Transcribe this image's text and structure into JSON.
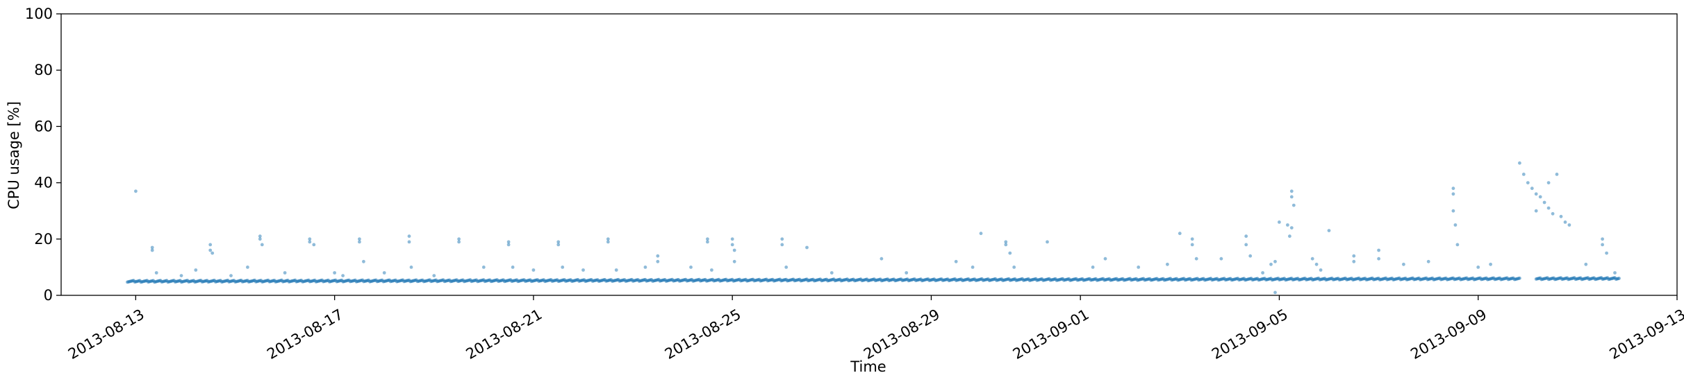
{
  "chart_data": {
    "type": "scatter",
    "title": "",
    "xlabel": "Time",
    "ylabel": "CPU usage [%]",
    "xlim": [
      "2013-08-11T12:00",
      "2013-09-13T00:00"
    ],
    "ylim": [
      0,
      100
    ],
    "x_ticks": [
      "2013-08-13",
      "2013-08-17",
      "2013-08-21",
      "2013-08-25",
      "2013-08-29",
      "2013-09-01",
      "2013-09-05",
      "2013-09-09",
      "2013-09-13"
    ],
    "y_ticks": [
      "0",
      "20",
      "40",
      "60",
      "80",
      "100"
    ],
    "grid": false,
    "legend": "none",
    "point_color": "#1f77b4",
    "series": [
      {
        "x_start": "2013-08-12T20:00",
        "x_end": "2013-09-11T20:00",
        "baseline_level_start": 5.0,
        "baseline_level_end": 6.0,
        "gap": [
          "2013-09-09T20:00",
          "2013-09-10T04:00"
        ],
        "points": [
          [
            "2013-08-13T00:00",
            37
          ],
          [
            "2013-08-13T08:00",
            17
          ],
          [
            "2013-08-13T08:00",
            16
          ],
          [
            "2013-08-13T10:00",
            8
          ],
          [
            "2013-08-13T22:00",
            7
          ],
          [
            "2013-08-14T05:00",
            9
          ],
          [
            "2013-08-14T12:00",
            18
          ],
          [
            "2013-08-14T12:00",
            16
          ],
          [
            "2013-08-14T13:00",
            15
          ],
          [
            "2013-08-14T22:00",
            7
          ],
          [
            "2013-08-15T06:00",
            10
          ],
          [
            "2013-08-15T12:00",
            21
          ],
          [
            "2013-08-15T12:00",
            20
          ],
          [
            "2013-08-15T13:00",
            18
          ],
          [
            "2013-08-16T00:00",
            8
          ],
          [
            "2013-08-16T12:00",
            20
          ],
          [
            "2013-08-16T12:00",
            19
          ],
          [
            "2013-08-16T14:00",
            18
          ],
          [
            "2013-08-17T00:00",
            8
          ],
          [
            "2013-08-17T04:00",
            7
          ],
          [
            "2013-08-17T12:00",
            20
          ],
          [
            "2013-08-17T12:00",
            19
          ],
          [
            "2013-08-17T14:00",
            12
          ],
          [
            "2013-08-18T00:00",
            8
          ],
          [
            "2013-08-18T12:00",
            21
          ],
          [
            "2013-08-18T12:00",
            19
          ],
          [
            "2013-08-18T13:00",
            10
          ],
          [
            "2013-08-19T00:00",
            7
          ],
          [
            "2013-08-19T12:00",
            20
          ],
          [
            "2013-08-19T12:00",
            19
          ],
          [
            "2013-08-20T00:00",
            10
          ],
          [
            "2013-08-20T12:00",
            19
          ],
          [
            "2013-08-20T12:00",
            18
          ],
          [
            "2013-08-20T14:00",
            10
          ],
          [
            "2013-08-21T00:00",
            9
          ],
          [
            "2013-08-21T12:00",
            19
          ],
          [
            "2013-08-21T12:00",
            18
          ],
          [
            "2013-08-21T14:00",
            10
          ],
          [
            "2013-08-22T00:00",
            9
          ],
          [
            "2013-08-22T12:00",
            20
          ],
          [
            "2013-08-22T12:00",
            19
          ],
          [
            "2013-08-22T16:00",
            9
          ],
          [
            "2013-08-23T06:00",
            10
          ],
          [
            "2013-08-23T12:00",
            14
          ],
          [
            "2013-08-23T12:00",
            12
          ],
          [
            "2013-08-24T04:00",
            10
          ],
          [
            "2013-08-24T12:00",
            20
          ],
          [
            "2013-08-24T12:00",
            19
          ],
          [
            "2013-08-24T14:00",
            9
          ],
          [
            "2013-08-25T00:00",
            20
          ],
          [
            "2013-08-25T00:00",
            18
          ],
          [
            "2013-08-25T01:00",
            16
          ],
          [
            "2013-08-25T01:00",
            12
          ],
          [
            "2013-08-26T00:00",
            20
          ],
          [
            "2013-08-26T00:00",
            18
          ],
          [
            "2013-08-26T02:00",
            10
          ],
          [
            "2013-08-26T12:00",
            17
          ],
          [
            "2013-08-27T00:00",
            8
          ],
          [
            "2013-08-28T00:00",
            13
          ],
          [
            "2013-08-28T12:00",
            8
          ],
          [
            "2013-08-29T12:00",
            12
          ],
          [
            "2013-08-29T20:00",
            10
          ],
          [
            "2013-08-30T00:00",
            22
          ],
          [
            "2013-08-30T12:00",
            19
          ],
          [
            "2013-08-30T12:00",
            18
          ],
          [
            "2013-08-30T14:00",
            15
          ],
          [
            "2013-08-30T16:00",
            10
          ],
          [
            "2013-08-31T08:00",
            19
          ],
          [
            "2013-09-01T06:00",
            10
          ],
          [
            "2013-09-01T12:00",
            13
          ],
          [
            "2013-09-02T04:00",
            10
          ],
          [
            "2013-09-02T18:00",
            11
          ],
          [
            "2013-09-03T00:00",
            22
          ],
          [
            "2013-09-03T06:00",
            20
          ],
          [
            "2013-09-03T06:00",
            18
          ],
          [
            "2013-09-03T08:00",
            13
          ],
          [
            "2013-09-03T20:00",
            13
          ],
          [
            "2013-09-04T08:00",
            21
          ],
          [
            "2013-09-04T08:00",
            18
          ],
          [
            "2013-09-04T10:00",
            14
          ],
          [
            "2013-09-04T16:00",
            8
          ],
          [
            "2013-09-04T20:00",
            11
          ],
          [
            "2013-09-04T22:00",
            12
          ],
          [
            "2013-09-04T22:00",
            1
          ],
          [
            "2013-09-05T00:00",
            26
          ],
          [
            "2013-09-05T04:00",
            25
          ],
          [
            "2013-09-05T06:00",
            37
          ],
          [
            "2013-09-05T06:00",
            35
          ],
          [
            "2013-09-05T07:00",
            32
          ],
          [
            "2013-09-05T06:00",
            24
          ],
          [
            "2013-09-05T05:00",
            21
          ],
          [
            "2013-09-05T16:00",
            13
          ],
          [
            "2013-09-05T18:00",
            11
          ],
          [
            "2013-09-05T20:00",
            9
          ],
          [
            "2013-09-06T00:00",
            23
          ],
          [
            "2013-09-06T12:00",
            14
          ],
          [
            "2013-09-06T12:00",
            12
          ],
          [
            "2013-09-07T00:00",
            16
          ],
          [
            "2013-09-07T00:00",
            13
          ],
          [
            "2013-09-07T12:00",
            11
          ],
          [
            "2013-09-08T00:00",
            12
          ],
          [
            "2013-09-08T12:00",
            38
          ],
          [
            "2013-09-08T12:00",
            36
          ],
          [
            "2013-09-08T12:00",
            30
          ],
          [
            "2013-09-08T13:00",
            25
          ],
          [
            "2013-09-08T14:00",
            18
          ],
          [
            "2013-09-09T00:00",
            10
          ],
          [
            "2013-09-09T06:00",
            11
          ],
          [
            "2013-09-09T20:00",
            47
          ],
          [
            "2013-09-09T22:00",
            43
          ],
          [
            "2013-09-10T00:00",
            40
          ],
          [
            "2013-09-10T02:00",
            38
          ],
          [
            "2013-09-10T04:00",
            36
          ],
          [
            "2013-09-10T06:00",
            35
          ],
          [
            "2013-09-10T08:00",
            33
          ],
          [
            "2013-09-10T10:00",
            31
          ],
          [
            "2013-09-10T12:00",
            29
          ],
          [
            "2013-09-10T14:00",
            43
          ],
          [
            "2013-09-10T16:00",
            28
          ],
          [
            "2013-09-10T18:00",
            26
          ],
          [
            "2013-09-10T20:00",
            25
          ],
          [
            "2013-09-10T10:00",
            40
          ],
          [
            "2013-09-10T04:00",
            30
          ],
          [
            "2013-09-11T04:00",
            11
          ],
          [
            "2013-09-11T12:00",
            20
          ],
          [
            "2013-09-11T12:00",
            18
          ],
          [
            "2013-09-11T14:00",
            15
          ],
          [
            "2013-09-11T18:00",
            8
          ]
        ]
      }
    ]
  }
}
